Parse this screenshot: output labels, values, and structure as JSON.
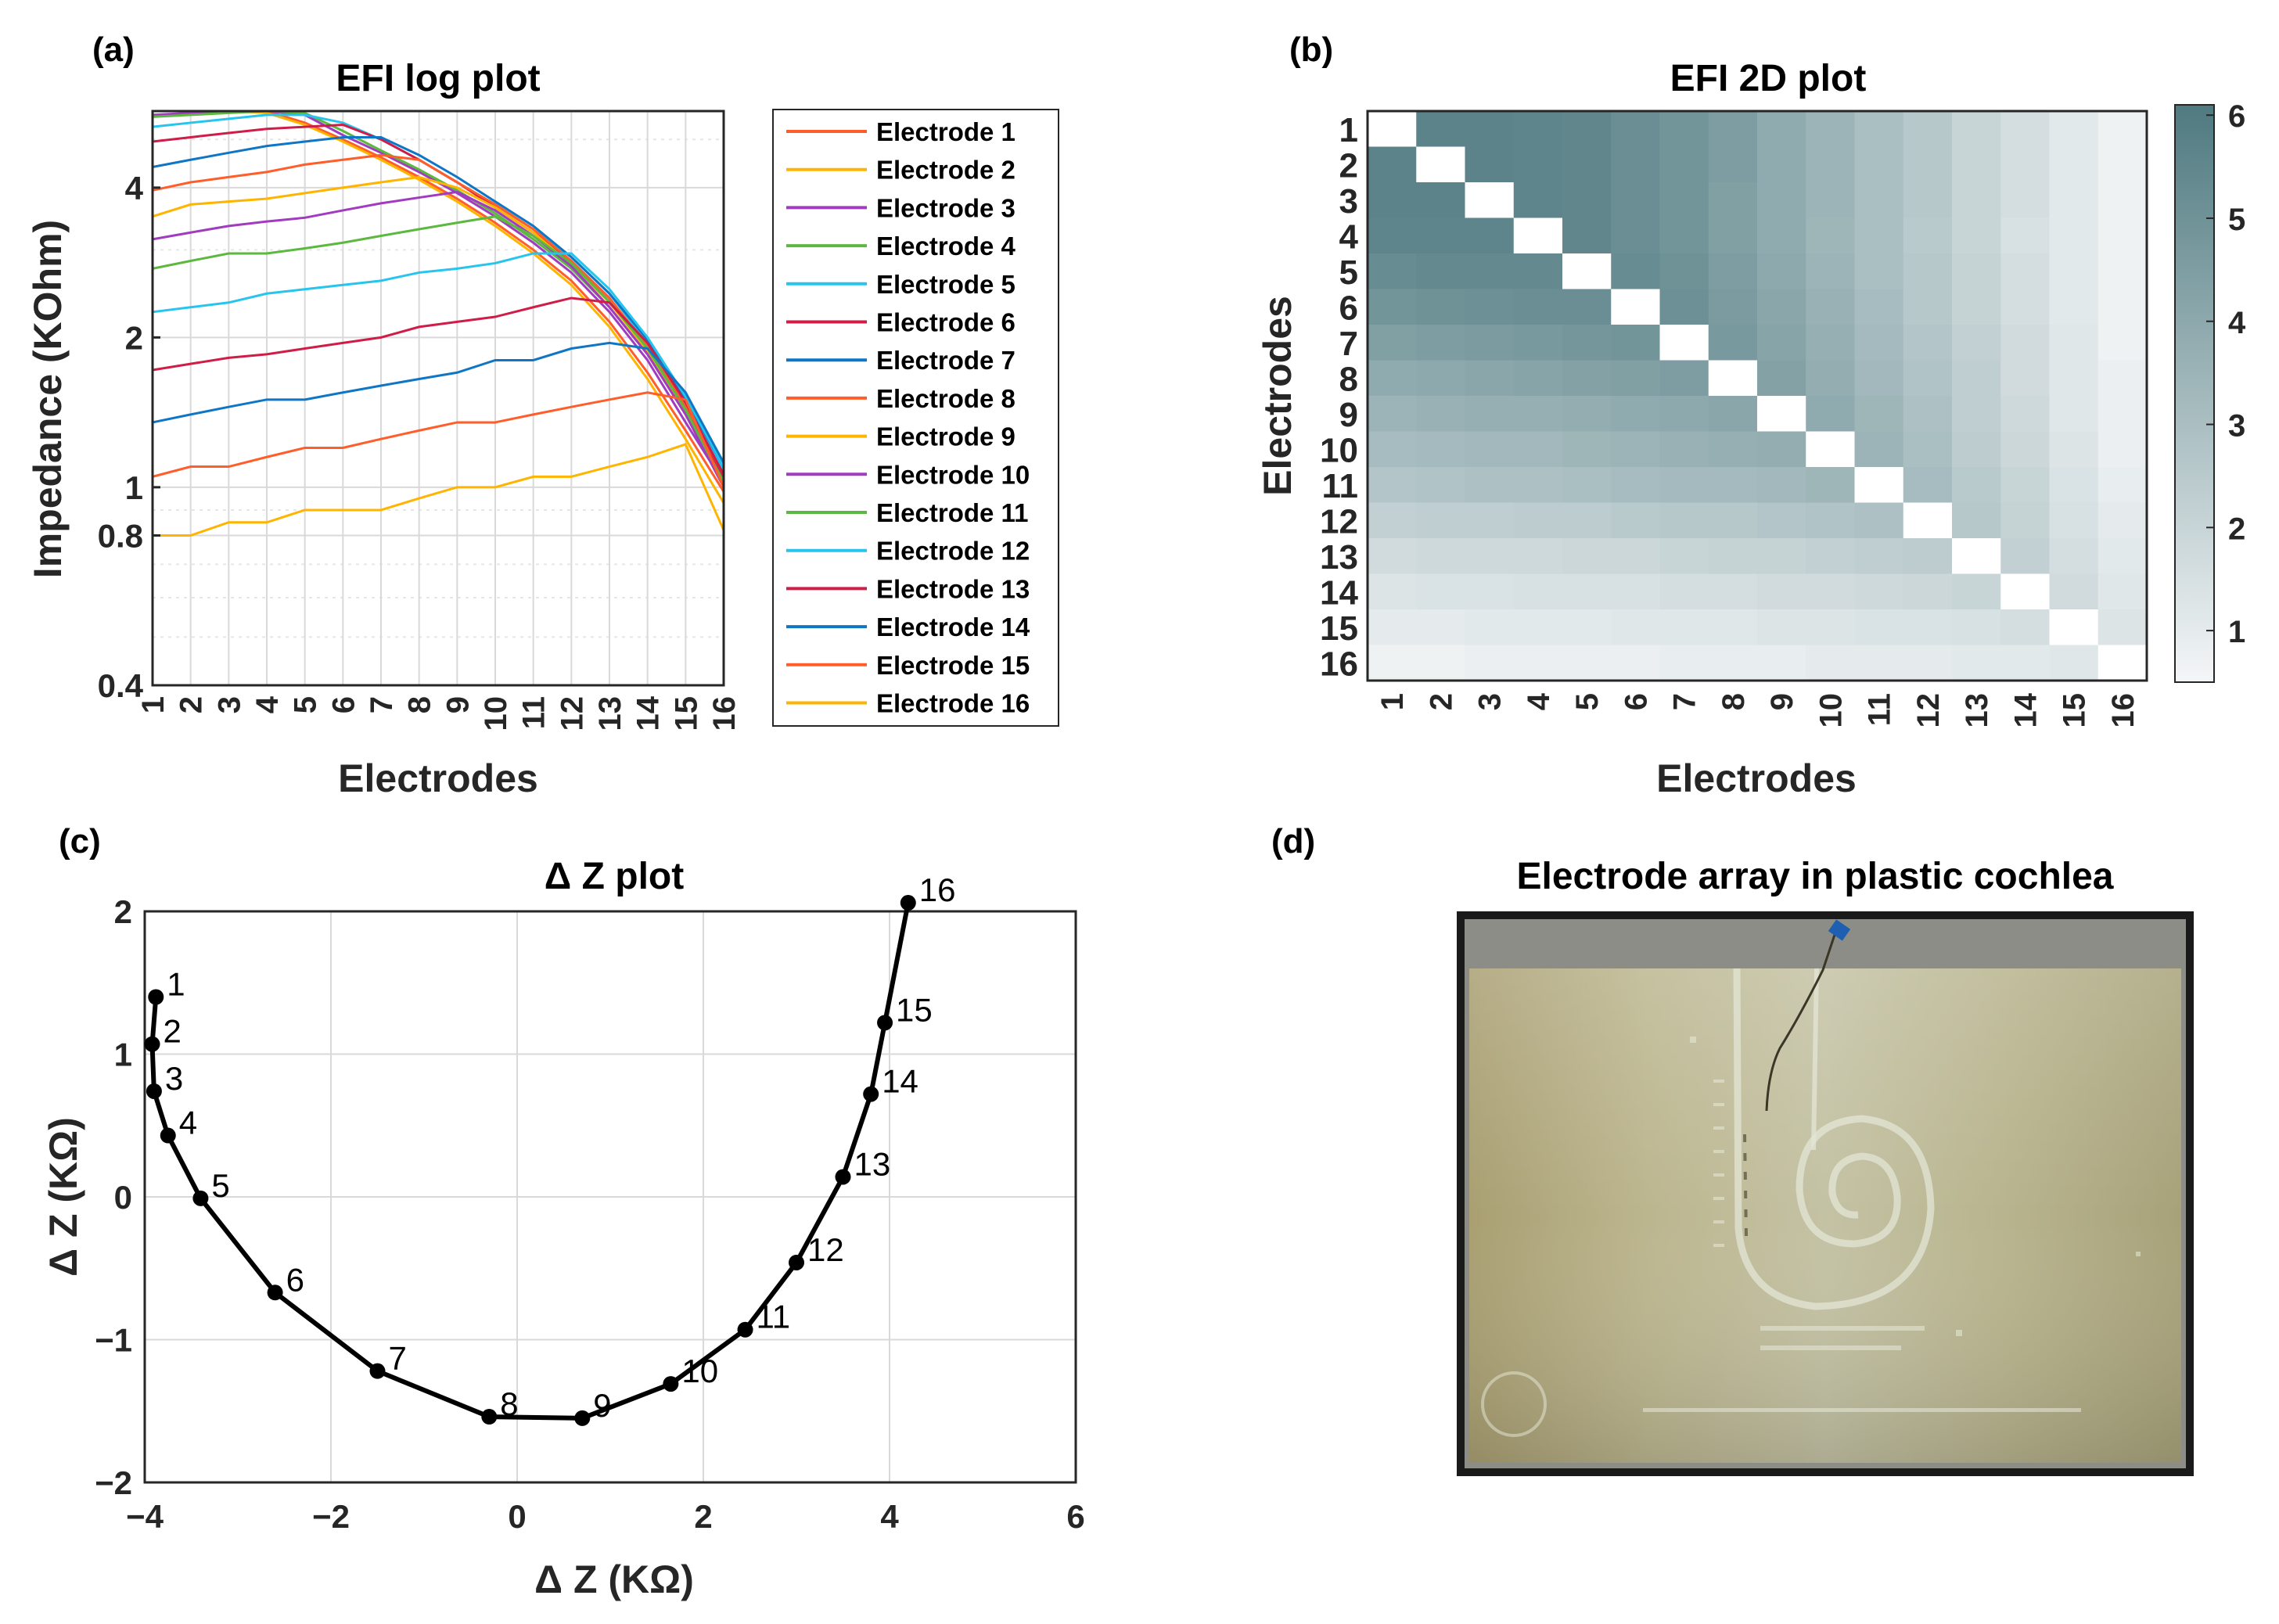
{
  "panel_labels": {
    "a": "(a)",
    "b": "(b)",
    "c": "(c)",
    "d": "(d)"
  },
  "colors": {
    "axis": "#262626",
    "grid": "#d9d9d9",
    "heat_low": "#f4f6f7",
    "heat_high": "#4f7a80",
    "diag": "#ffffff",
    "line_black": "#000000",
    "palette": [
      "#ff5d2a",
      "#ffb400",
      "#a13bc0",
      "#5cb83e",
      "#27c5ed",
      "#cf1d48",
      "#0f76c6"
    ]
  },
  "chart_data": [
    {
      "id": "a",
      "type": "line",
      "title": "EFI log plot",
      "xlabel": "Electrodes",
      "ylabel": "Impedance (KOhm)",
      "yscale": "log",
      "ylim": [
        0.4,
        5.7
      ],
      "xlim": [
        1,
        16
      ],
      "categories": [
        "1",
        "2",
        "3",
        "4",
        "5",
        "6",
        "7",
        "8",
        "9",
        "10",
        "11",
        "12",
        "13",
        "14",
        "15",
        "16"
      ],
      "yticks": [
        0.4,
        0.8,
        1,
        2,
        4
      ],
      "ytick_labels": [
        "0.4",
        "0.8",
        "1",
        "2",
        "4"
      ],
      "series": [
        {
          "name": "Electrode 1",
          "values": [
            5.7,
            5.7,
            5.7,
            5.7,
            5.4,
            5.0,
            4.6,
            4.2,
            3.8,
            3.4,
            3.0,
            2.6,
            2.15,
            1.7,
            1.3,
            0.98
          ]
        },
        {
          "name": "Electrode 2",
          "values": [
            5.7,
            5.7,
            5.7,
            5.65,
            5.35,
            4.95,
            4.55,
            4.15,
            3.75,
            3.35,
            2.95,
            2.55,
            2.1,
            1.65,
            1.25,
            0.93
          ]
        },
        {
          "name": "Electrode 3",
          "values": [
            5.6,
            5.65,
            5.7,
            5.7,
            5.6,
            5.1,
            4.7,
            4.3,
            3.9,
            3.5,
            3.1,
            2.7,
            2.25,
            1.8,
            1.35,
            1.02
          ]
        },
        {
          "name": "Electrode 4",
          "values": [
            5.55,
            5.6,
            5.65,
            5.7,
            5.65,
            5.2,
            4.75,
            4.35,
            3.95,
            3.55,
            3.15,
            2.75,
            2.3,
            1.85,
            1.4,
            1.04
          ]
        },
        {
          "name": "Electrode 5",
          "values": [
            5.3,
            5.4,
            5.5,
            5.6,
            5.6,
            5.4,
            5.0,
            4.55,
            4.1,
            3.7,
            3.3,
            2.9,
            2.45,
            1.95,
            1.48,
            1.08
          ]
        },
        {
          "name": "Electrode 6",
          "values": [
            4.95,
            5.05,
            5.15,
            5.25,
            5.3,
            5.35,
            5.0,
            4.55,
            4.1,
            3.65,
            3.25,
            2.85,
            2.4,
            1.9,
            1.45,
            1.05
          ]
        },
        {
          "name": "Electrode 7",
          "values": [
            4.4,
            4.55,
            4.7,
            4.85,
            4.95,
            5.05,
            5.05,
            4.65,
            4.2,
            3.75,
            3.35,
            2.9,
            2.45,
            1.98,
            1.5,
            1.1
          ]
        },
        {
          "name": "Electrode 8",
          "values": [
            3.95,
            4.1,
            4.2,
            4.3,
            4.45,
            4.55,
            4.65,
            4.55,
            4.1,
            3.7,
            3.3,
            2.85,
            2.4,
            1.92,
            1.46,
            1.06
          ]
        },
        {
          "name": "Electrode 9",
          "values": [
            3.5,
            3.7,
            3.75,
            3.8,
            3.9,
            4.0,
            4.1,
            4.2,
            4.0,
            3.65,
            3.25,
            2.8,
            2.35,
            1.88,
            1.42,
            1.02
          ]
        },
        {
          "name": "Electrode 10",
          "values": [
            3.15,
            3.25,
            3.35,
            3.42,
            3.48,
            3.6,
            3.72,
            3.82,
            3.92,
            3.6,
            3.2,
            2.78,
            2.3,
            1.85,
            1.4,
            1.0
          ]
        },
        {
          "name": "Electrode 11",
          "values": [
            2.75,
            2.85,
            2.95,
            2.95,
            3.02,
            3.1,
            3.2,
            3.3,
            3.4,
            3.5,
            3.2,
            2.82,
            2.36,
            1.9,
            1.43,
            1.02
          ]
        },
        {
          "name": "Electrode 12",
          "values": [
            2.25,
            2.3,
            2.35,
            2.45,
            2.5,
            2.55,
            2.6,
            2.7,
            2.75,
            2.82,
            2.95,
            2.95,
            2.5,
            2.0,
            1.52,
            1.1
          ]
        },
        {
          "name": "Electrode 13",
          "values": [
            1.72,
            1.77,
            1.82,
            1.85,
            1.9,
            1.95,
            2.0,
            2.1,
            2.15,
            2.2,
            2.3,
            2.4,
            2.35,
            1.95,
            1.48,
            1.06
          ]
        },
        {
          "name": "Electrode 14",
          "values": [
            1.35,
            1.4,
            1.45,
            1.5,
            1.5,
            1.55,
            1.6,
            1.65,
            1.7,
            1.8,
            1.8,
            1.9,
            1.95,
            1.9,
            1.55,
            1.12
          ]
        },
        {
          "name": "Electrode 15",
          "values": [
            1.05,
            1.1,
            1.1,
            1.15,
            1.2,
            1.2,
            1.25,
            1.3,
            1.35,
            1.35,
            1.4,
            1.45,
            1.5,
            1.55,
            1.5,
            1.0
          ]
        },
        {
          "name": "Electrode 16",
          "values": [
            0.8,
            0.8,
            0.85,
            0.85,
            0.9,
            0.9,
            0.9,
            0.95,
            1.0,
            1.0,
            1.05,
            1.05,
            1.1,
            1.15,
            1.22,
            0.82
          ]
        }
      ]
    },
    {
      "id": "b",
      "type": "heatmap",
      "title": "EFI 2D plot",
      "xlabel": "Electrodes",
      "ylabel": "Electrodes",
      "categories": [
        "1",
        "2",
        "3",
        "4",
        "5",
        "6",
        "7",
        "8",
        "9",
        "10",
        "11",
        "12",
        "13",
        "14",
        "15",
        "16"
      ],
      "zlim": [
        0.5,
        6.1
      ],
      "colorbar_ticks": [
        1,
        2,
        3,
        4,
        5,
        6
      ],
      "colorbar_tick_labels": [
        "1",
        "2",
        "3",
        "4",
        "5",
        "6"
      ],
      "values": [
        [
          0.0,
          5.7,
          5.7,
          5.6,
          5.5,
          5.2,
          4.9,
          4.5,
          3.9,
          3.5,
          3.0,
          2.6,
          2.0,
          1.6,
          1.1,
          0.7
        ],
        [
          5.7,
          0.0,
          5.7,
          5.6,
          5.5,
          5.2,
          4.9,
          4.5,
          3.9,
          3.5,
          3.0,
          2.6,
          2.0,
          1.6,
          1.1,
          0.7
        ],
        [
          5.7,
          5.7,
          0.0,
          5.6,
          5.5,
          5.2,
          4.9,
          4.4,
          3.9,
          3.5,
          3.0,
          2.6,
          2.0,
          1.6,
          1.1,
          0.7
        ],
        [
          5.6,
          5.6,
          5.6,
          0.0,
          5.5,
          5.2,
          4.9,
          4.4,
          3.9,
          3.4,
          3.0,
          2.5,
          2.0,
          1.5,
          1.1,
          0.7
        ],
        [
          5.3,
          5.4,
          5.4,
          5.4,
          0.0,
          5.3,
          5.0,
          4.5,
          4.0,
          3.5,
          3.0,
          2.6,
          2.1,
          1.6,
          1.1,
          0.7
        ],
        [
          4.9,
          5.0,
          5.1,
          5.2,
          5.2,
          0.0,
          5.1,
          4.6,
          4.1,
          3.6,
          3.1,
          2.6,
          2.1,
          1.6,
          1.1,
          0.7
        ],
        [
          4.4,
          4.5,
          4.6,
          4.7,
          4.8,
          4.9,
          0.0,
          4.7,
          4.2,
          3.7,
          3.2,
          2.7,
          2.2,
          1.7,
          1.2,
          0.7
        ],
        [
          3.9,
          4.0,
          4.1,
          4.2,
          4.3,
          4.4,
          4.5,
          0.0,
          4.3,
          3.8,
          3.3,
          2.8,
          2.3,
          1.7,
          1.2,
          0.8
        ],
        [
          3.5,
          3.6,
          3.7,
          3.7,
          3.8,
          3.9,
          4.0,
          4.1,
          0.0,
          3.9,
          3.4,
          2.9,
          2.3,
          1.8,
          1.2,
          0.8
        ],
        [
          3.1,
          3.2,
          3.3,
          3.3,
          3.4,
          3.5,
          3.6,
          3.7,
          3.8,
          0.0,
          3.5,
          3.0,
          2.4,
          1.9,
          1.3,
          0.8
        ],
        [
          2.7,
          2.8,
          2.9,
          2.9,
          3.0,
          3.1,
          3.2,
          3.2,
          3.3,
          3.4,
          0.0,
          3.1,
          2.5,
          2.0,
          1.4,
          0.9
        ],
        [
          2.2,
          2.3,
          2.3,
          2.4,
          2.4,
          2.5,
          2.6,
          2.6,
          2.7,
          2.8,
          2.9,
          0.0,
          2.6,
          2.1,
          1.5,
          1.0
        ],
        [
          1.7,
          1.8,
          1.8,
          1.8,
          1.9,
          1.9,
          2.0,
          2.1,
          2.1,
          2.2,
          2.3,
          2.4,
          0.0,
          2.2,
          1.6,
          1.1
        ],
        [
          1.3,
          1.4,
          1.4,
          1.5,
          1.5,
          1.5,
          1.6,
          1.6,
          1.7,
          1.7,
          1.8,
          1.9,
          2.0,
          0.0,
          1.7,
          1.2
        ],
        [
          1.0,
          1.0,
          1.1,
          1.1,
          1.1,
          1.2,
          1.2,
          1.2,
          1.3,
          1.3,
          1.4,
          1.4,
          1.5,
          1.6,
          0.0,
          1.3
        ],
        [
          0.7,
          0.7,
          0.8,
          0.8,
          0.8,
          0.8,
          0.9,
          0.9,
          0.9,
          1.0,
          1.0,
          1.0,
          1.1,
          1.1,
          1.2,
          0.0
        ]
      ]
    },
    {
      "id": "c",
      "type": "line",
      "title": "Δ Z plot",
      "xlabel": "Δ Z (KΩ)",
      "ylabel": "Δ Z (KΩ)",
      "xlim": [
        -4,
        6
      ],
      "ylim": [
        -2,
        2
      ],
      "xticks": [
        -4,
        -2,
        0,
        2,
        4,
        6
      ],
      "xtick_labels": [
        "−4",
        "−2",
        "0",
        "2",
        "4",
        "6"
      ],
      "yticks": [
        -2,
        -1,
        0,
        1,
        2
      ],
      "ytick_labels": [
        "−2",
        "−1",
        "0",
        "1",
        "2"
      ],
      "point_labels": [
        "1",
        "2",
        "3",
        "4",
        "5",
        "6",
        "7",
        "8",
        "9",
        "10",
        "11",
        "12",
        "13",
        "14",
        "15",
        "16"
      ],
      "x": [
        -3.88,
        -3.92,
        -3.9,
        -3.75,
        -3.4,
        -2.6,
        -1.5,
        -0.3,
        0.7,
        1.65,
        2.45,
        3.0,
        3.5,
        3.8,
        3.95,
        4.2
      ],
      "y": [
        1.4,
        1.07,
        0.74,
        0.43,
        -0.01,
        -0.67,
        -1.22,
        -1.54,
        -1.55,
        -1.31,
        -0.93,
        -0.46,
        0.14,
        0.72,
        1.22,
        2.06
      ]
    }
  ],
  "photo": {
    "title": "Electrode array in plastic cochlea"
  }
}
